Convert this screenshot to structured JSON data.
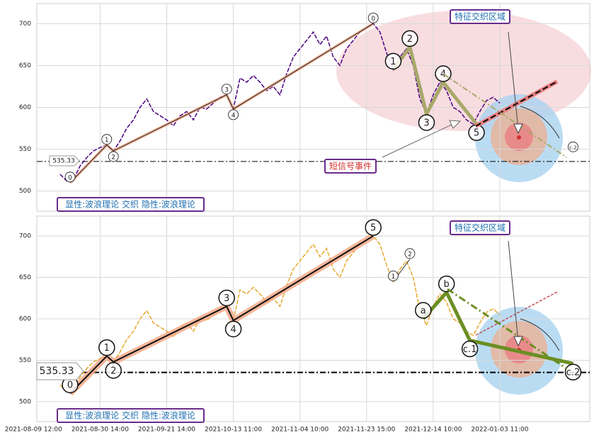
{
  "chart_data": [
    {
      "type": "line",
      "x": [
        8,
        10,
        12,
        14,
        16,
        18,
        20,
        22,
        24,
        26,
        28,
        30,
        32,
        34,
        36,
        38,
        40,
        42,
        44,
        46,
        48,
        50,
        52,
        54,
        56,
        58,
        60,
        62,
        64,
        66,
        68,
        70,
        72,
        74,
        76,
        78,
        80,
        82,
        84,
        86,
        88,
        90,
        92,
        94,
        96,
        98,
        100,
        102,
        104,
        106,
        108,
        110,
        112,
        114,
        116,
        118,
        120,
        122,
        124,
        126,
        128,
        130,
        132,
        134,
        136,
        138,
        140
      ],
      "series": [
        {
          "color": "#4b0082",
          "values": [
            520,
            512,
            514,
            530,
            540,
            548,
            552,
            555,
            548,
            560,
            575,
            585,
            600,
            610,
            595,
            590,
            585,
            578,
            590,
            595,
            585,
            600,
            598,
            605,
            612,
            615,
            598,
            635,
            630,
            638,
            630,
            620,
            625,
            615,
            640,
            660,
            670,
            680,
            690,
            675,
            685,
            660,
            650,
            670,
            680,
            690,
            695,
            700,
            690,
            665,
            645,
            660,
            670,
            650,
            610,
            592,
            615,
            630,
            620,
            600,
            595,
            585,
            580,
            595,
            608,
            612,
            605
          ]
        }
      ],
      "xlim": [
        1,
        167
      ],
      "ylim": [
        476,
        724
      ],
      "yticks": [
        500,
        550,
        600,
        650,
        700
      ],
      "grid": true,
      "level": 535.33,
      "annotation": "显性:波浪理论 交织 隐性:波浪理论",
      "zone_label": "特征交织区域",
      "event_label": "短信号事件",
      "waves": [
        {
          "color": "#222222",
          "halo": "#f4a582",
          "marker": "small",
          "points": [
            {
              "label": "0",
              "x": 11,
              "y": 510
            },
            {
              "label": "1",
              "x": 22,
              "y": 555
            },
            {
              "label": "2",
              "x": 24,
              "y": 548
            },
            {
              "label": "3",
              "x": 58,
              "y": 615
            },
            {
              "label": "4",
              "x": 60,
              "y": 598
            },
            {
              "label": "0",
              "x": 102,
              "y": 700
            }
          ]
        },
        {
          "color": "#a8a86a",
          "marker": "large",
          "points": [
            {
              "label": "1",
              "x": 108,
              "y": 645
            },
            {
              "label": "2",
              "x": 113,
              "y": 672
            },
            {
              "label": "3",
              "x": 118,
              "y": 592
            },
            {
              "label": "4",
              "x": 123,
              "y": 630
            },
            {
              "label": "5",
              "x": 133,
              "y": 580
            }
          ]
        },
        {
          "color": "#a8a86a",
          "marker": "small",
          "points": [
            {
              "label": "c.2",
              "x": 162,
              "y": 546
            }
          ]
        }
      ]
    },
    {
      "type": "line",
      "x": [
        8,
        10,
        12,
        14,
        16,
        18,
        20,
        22,
        24,
        26,
        28,
        30,
        32,
        34,
        36,
        38,
        40,
        42,
        44,
        46,
        48,
        50,
        52,
        54,
        56,
        58,
        60,
        62,
        64,
        66,
        68,
        70,
        72,
        74,
        76,
        78,
        80,
        82,
        84,
        86,
        88,
        90,
        92,
        94,
        96,
        98,
        100,
        102,
        104,
        106,
        108,
        110,
        112,
        114,
        116,
        118,
        120,
        122,
        124,
        126,
        128,
        130,
        132,
        134,
        136,
        138,
        140
      ],
      "series": [
        {
          "color": "#e8a830",
          "values": [
            520,
            512,
            514,
            530,
            540,
            548,
            552,
            555,
            548,
            560,
            575,
            585,
            600,
            610,
            595,
            590,
            585,
            578,
            590,
            595,
            585,
            600,
            598,
            605,
            612,
            615,
            598,
            635,
            630,
            638,
            630,
            620,
            625,
            615,
            640,
            660,
            670,
            680,
            690,
            675,
            685,
            660,
            650,
            670,
            680,
            690,
            695,
            700,
            690,
            665,
            645,
            660,
            670,
            650,
            610,
            592,
            615,
            630,
            620,
            600,
            595,
            585,
            580,
            595,
            608,
            612,
            605
          ]
        }
      ],
      "xlim": [
        1,
        167
      ],
      "ylim": [
        476,
        724
      ],
      "yticks": [
        500,
        550,
        600,
        650,
        700
      ],
      "grid": true,
      "xticks": [
        {
          "value": 0,
          "label": "2021-08-09 12:00"
        },
        {
          "value": 20,
          "label": "2021-08-30 14:00"
        },
        {
          "value": 40,
          "label": "2021-09-21 14:00"
        },
        {
          "value": 60,
          "label": "2021-10-13 11:00"
        },
        {
          "value": 80,
          "label": "2021-11-04 10:00"
        },
        {
          "value": 100,
          "label": "2021-11-23 15:00"
        },
        {
          "value": 120,
          "label": "2021-12-14 10:00"
        },
        {
          "value": 140,
          "label": "2022-01-03 11:00"
        }
      ],
      "level": 535.33,
      "annotation": "显性:波浪理论 交织 隐性:波浪理论",
      "zone_label": "特征交织区域",
      "waves": [
        {
          "color": "#111111",
          "halo": "#f4a582",
          "marker": "large",
          "points": [
            {
              "label": "0",
              "x": 11,
              "y": 510
            },
            {
              "label": "1",
              "x": 22,
              "y": 555
            },
            {
              "label": "2",
              "x": 24,
              "y": 548
            },
            {
              "label": "3",
              "x": 58,
              "y": 615
            },
            {
              "label": "4",
              "x": 60,
              "y": 598
            },
            {
              "label": "5",
              "x": 102,
              "y": 700
            }
          ]
        },
        {
          "color": "#333333",
          "marker": "small",
          "points": [
            {
              "label": "1",
              "x": 108,
              "y": 645
            },
            {
              "label": "2",
              "x": 113,
              "y": 672
            }
          ]
        },
        {
          "color": "#6b8e23",
          "marker": "large",
          "points": [
            {
              "label": "a",
              "x": 117,
              "y": 600
            },
            {
              "label": "b",
              "x": 124,
              "y": 632
            },
            {
              "label": "c.1",
              "x": 131,
              "y": 574
            },
            {
              "label": "c.2",
              "x": 162,
              "y": 546
            }
          ]
        }
      ]
    }
  ]
}
